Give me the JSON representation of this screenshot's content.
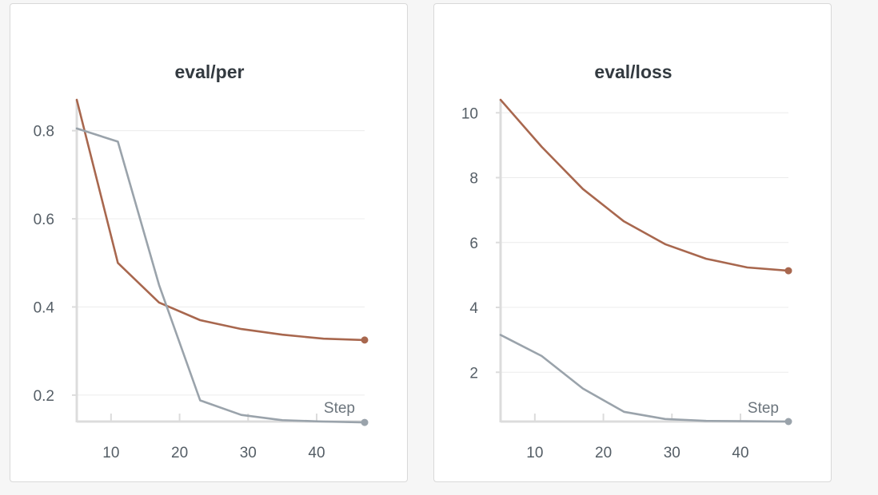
{
  "colors": {
    "series_1": "#a8674e",
    "series_2": "#9aa3ab",
    "grid": "#ececec",
    "axis": "#dcdcdc",
    "text": "#555e66",
    "title": "#333a40"
  },
  "chart_data": [
    {
      "type": "line",
      "title": "eval/per",
      "xlabel": "Step",
      "ylabel": "",
      "xlim": [
        5,
        47
      ],
      "ylim": [
        0.14,
        0.87
      ],
      "x_ticks": [
        10,
        20,
        30,
        40
      ],
      "y_ticks": [
        0.2,
        0.4,
        0.6,
        0.8
      ],
      "x_tick_labels": [
        "10",
        "20",
        "30",
        "40"
      ],
      "y_tick_labels": [
        "0.2",
        "0.4",
        "0.6",
        "0.8"
      ],
      "grid": true,
      "legend": "none",
      "series": [
        {
          "color": "#a8674e",
          "x": [
            5,
            11,
            17,
            23,
            29,
            35,
            41,
            47
          ],
          "values": [
            0.87,
            0.5,
            0.41,
            0.37,
            0.35,
            0.337,
            0.328,
            0.325
          ]
        },
        {
          "color": "#9aa3ab",
          "x": [
            5,
            11,
            17,
            23,
            29,
            35,
            41,
            47
          ],
          "values": [
            0.805,
            0.775,
            0.45,
            0.188,
            0.155,
            0.143,
            0.14,
            0.138
          ]
        }
      ]
    },
    {
      "type": "line",
      "title": "eval/loss",
      "xlabel": "Step",
      "ylabel": "",
      "xlim": [
        5,
        47
      ],
      "ylim": [
        0.48,
        10.4
      ],
      "x_ticks": [
        10,
        20,
        30,
        40
      ],
      "y_ticks": [
        2,
        4,
        6,
        8,
        10
      ],
      "x_tick_labels": [
        "10",
        "20",
        "30",
        "40"
      ],
      "y_tick_labels": [
        "2",
        "4",
        "6",
        "8",
        "10"
      ],
      "grid": true,
      "legend": "none",
      "series": [
        {
          "color": "#a8674e",
          "x": [
            5,
            11,
            17,
            23,
            29,
            35,
            41,
            47
          ],
          "values": [
            10.4,
            8.95,
            7.65,
            6.65,
            5.95,
            5.5,
            5.23,
            5.13
          ]
        },
        {
          "color": "#9aa3ab",
          "x": [
            5,
            11,
            17,
            23,
            29,
            35,
            41,
            47
          ],
          "values": [
            3.15,
            2.5,
            1.5,
            0.78,
            0.56,
            0.5,
            0.49,
            0.48
          ]
        }
      ]
    }
  ]
}
